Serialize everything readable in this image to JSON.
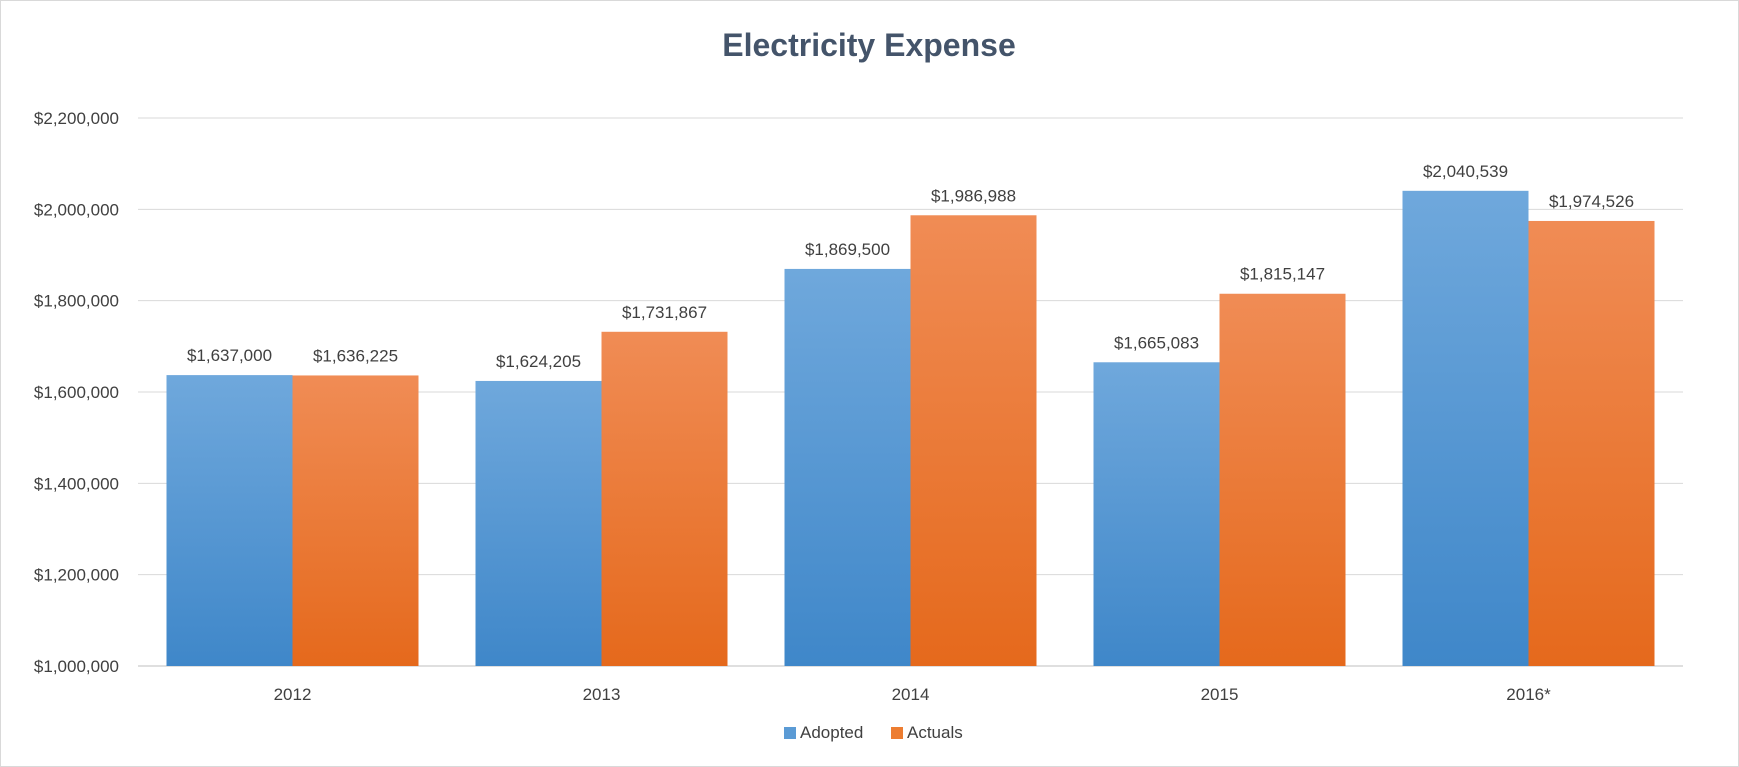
{
  "chart_data": {
    "type": "bar",
    "title": "Electricity Expense",
    "categories": [
      "2012",
      "2013",
      "2014",
      "2015",
      "2016*"
    ],
    "series": [
      {
        "name": "Adopted",
        "values": [
          1637000,
          1624205,
          1869500,
          1665083,
          2040539
        ],
        "labels": [
          "$1,637,000",
          "$1,624,205",
          "$1,869,500",
          "$1,665,083",
          "$2,040,539"
        ],
        "color": "#5b9bd5"
      },
      {
        "name": "Actuals",
        "values": [
          1636225,
          1731867,
          1986988,
          1815147,
          1974526
        ],
        "labels": [
          "$1,636,225",
          "$1,731,867",
          "$1,986,988",
          "$1,815,147",
          "$1,974,526"
        ],
        "color": "#ed7d31"
      }
    ],
    "ylim": [
      1000000,
      2200000
    ],
    "yticks": [
      1000000,
      1200000,
      1400000,
      1600000,
      1800000,
      2000000,
      2200000
    ],
    "ytick_labels": [
      "$1,000,000",
      "$1,200,000",
      "$1,400,000",
      "$1,600,000",
      "$1,800,000",
      "$2,000,000",
      "$2,200,000"
    ],
    "grid": true,
    "legend": "bottom"
  }
}
